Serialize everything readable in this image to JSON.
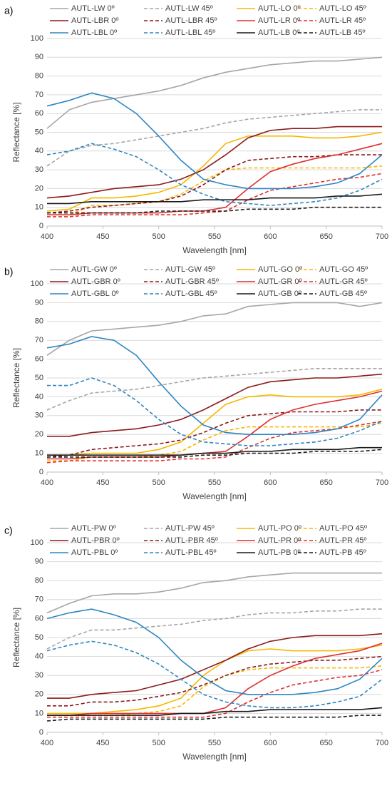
{
  "chart_data": [
    {
      "type": "line",
      "panel_label": "a)",
      "xlabel": "Wavelength [nm]",
      "ylabel": "Reflectance [%]",
      "x": [
        400,
        420,
        440,
        460,
        480,
        500,
        520,
        540,
        560,
        580,
        600,
        620,
        640,
        660,
        680,
        700
      ],
      "xlim": [
        400,
        700
      ],
      "xticks": [
        400,
        450,
        500,
        550,
        600,
        650,
        700
      ],
      "ylim": [
        0,
        100
      ],
      "yticks": [
        0,
        10,
        20,
        30,
        40,
        50,
        60,
        70,
        80,
        90,
        100
      ],
      "grid": true,
      "series": [
        {
          "name": "AUTL-LW 0º",
          "color": "#a6a6a6",
          "style": "solid",
          "values": [
            52,
            62,
            66,
            68,
            70,
            72,
            75,
            79,
            82,
            84,
            86,
            87,
            88,
            88,
            89,
            90
          ]
        },
        {
          "name": "AUTL-LW 45º",
          "color": "#a6a6a6",
          "style": "dashed",
          "values": [
            32,
            40,
            43,
            44,
            46,
            48,
            50,
            52,
            55,
            57,
            58,
            59,
            60,
            61,
            62,
            62
          ]
        },
        {
          "name": "AUTL-LO 0º",
          "color": "#f5b800",
          "style": "solid",
          "values": [
            8,
            9,
            15,
            15,
            16,
            18,
            22,
            32,
            44,
            48,
            48,
            48,
            47,
            47,
            48,
            50
          ]
        },
        {
          "name": "AUTL-LO 45º",
          "color": "#f5b800",
          "style": "dashed",
          "values": [
            6,
            6,
            11,
            11,
            12,
            13,
            17,
            24,
            30,
            31,
            31,
            31,
            31,
            31,
            31,
            32
          ]
        },
        {
          "name": "AUTL-LBR 0º",
          "color": "#8b1a1a",
          "style": "solid",
          "values": [
            15,
            16,
            18,
            20,
            21,
            22,
            25,
            30,
            38,
            47,
            51,
            52,
            52,
            53,
            53,
            53
          ]
        },
        {
          "name": "AUTL-LBR 45º",
          "color": "#8b1a1a",
          "style": "dashed",
          "values": [
            7,
            8,
            10,
            11,
            12,
            13,
            16,
            22,
            30,
            35,
            36,
            37,
            37,
            38,
            38,
            38
          ]
        },
        {
          "name": "AUTL-LR 0º",
          "color": "#e03030",
          "style": "solid",
          "values": [
            6,
            6,
            7,
            7,
            7,
            7,
            8,
            8,
            10,
            20,
            29,
            33,
            36,
            38,
            41,
            44
          ]
        },
        {
          "name": "AUTL-LR 45º",
          "color": "#e03030",
          "style": "dashed",
          "values": [
            5,
            5,
            6,
            6,
            6,
            6,
            6,
            7,
            8,
            14,
            19,
            21,
            23,
            25,
            26,
            28
          ]
        },
        {
          "name": "AUTL-LBL 0º",
          "color": "#2e86c1",
          "style": "solid",
          "values": [
            64,
            67,
            71,
            68,
            60,
            48,
            35,
            25,
            22,
            20,
            20,
            20,
            21,
            23,
            28,
            38
          ]
        },
        {
          "name": "AUTL-LBL 45º",
          "color": "#2e86c1",
          "style": "dashed",
          "values": [
            38,
            40,
            44,
            41,
            37,
            30,
            22,
            17,
            13,
            12,
            11,
            12,
            13,
            15,
            19,
            25
          ]
        },
        {
          "name": "AUTL-LB 0º",
          "color": "#1a1a1a",
          "style": "solid",
          "values": [
            12,
            12,
            13,
            13,
            13,
            13,
            13,
            14,
            14,
            14,
            15,
            15,
            15,
            16,
            16,
            17
          ]
        },
        {
          "name": "AUTL-LB 45º",
          "color": "#1a1a1a",
          "style": "dashed",
          "values": [
            7,
            7,
            7,
            7,
            7,
            8,
            8,
            8,
            8,
            9,
            9,
            9,
            10,
            10,
            10,
            10
          ]
        }
      ]
    },
    {
      "type": "line",
      "panel_label": "b)",
      "xlabel": "Wavelength [nm]",
      "ylabel": "Reflectance [%]",
      "x": [
        400,
        420,
        440,
        460,
        480,
        500,
        520,
        540,
        560,
        580,
        600,
        620,
        640,
        660,
        680,
        700
      ],
      "xlim": [
        400,
        700
      ],
      "xticks": [
        400,
        450,
        500,
        550,
        600,
        650,
        700
      ],
      "ylim": [
        0,
        100
      ],
      "yticks": [
        0,
        10,
        20,
        30,
        40,
        50,
        60,
        70,
        80,
        90,
        100
      ],
      "grid": true,
      "series": [
        {
          "name": "AUTL-GW 0º",
          "color": "#a6a6a6",
          "style": "solid",
          "values": [
            62,
            70,
            75,
            76,
            77,
            78,
            80,
            83,
            84,
            88,
            89,
            90,
            90,
            90,
            88,
            90
          ]
        },
        {
          "name": "AUTL-GW 45º",
          "color": "#a6a6a6",
          "style": "dashed",
          "values": [
            33,
            38,
            42,
            43,
            44,
            46,
            48,
            50,
            51,
            52,
            53,
            54,
            55,
            55,
            55,
            55
          ]
        },
        {
          "name": "AUTL-GO 0º",
          "color": "#f5b800",
          "style": "solid",
          "values": [
            9,
            9,
            10,
            10,
            10,
            12,
            16,
            26,
            36,
            40,
            41,
            40,
            40,
            40,
            41,
            44
          ]
        },
        {
          "name": "AUTL-GO 45º",
          "color": "#f5b800",
          "style": "dashed",
          "values": [
            6,
            6,
            8,
            8,
            8,
            9,
            11,
            17,
            22,
            24,
            24,
            24,
            24,
            24,
            24,
            26
          ]
        },
        {
          "name": "AUTL-GBR 0º",
          "color": "#8b1a1a",
          "style": "solid",
          "values": [
            19,
            19,
            21,
            22,
            23,
            25,
            28,
            33,
            39,
            45,
            48,
            49,
            50,
            50,
            51,
            52
          ]
        },
        {
          "name": "AUTL-GBR 45º",
          "color": "#8b1a1a",
          "style": "dashed",
          "values": [
            8,
            9,
            12,
            13,
            14,
            15,
            17,
            21,
            26,
            30,
            31,
            32,
            32,
            32,
            33,
            33
          ]
        },
        {
          "name": "AUTL-GR 0º",
          "color": "#e03030",
          "style": "solid",
          "values": [
            7,
            7,
            8,
            8,
            8,
            8,
            9,
            10,
            11,
            19,
            28,
            33,
            36,
            38,
            40,
            43
          ]
        },
        {
          "name": "AUTL-GR 45º",
          "color": "#e03030",
          "style": "dashed",
          "values": [
            5,
            6,
            6,
            6,
            6,
            6,
            7,
            7,
            8,
            13,
            18,
            21,
            22,
            23,
            25,
            27
          ]
        },
        {
          "name": "AUTL-GBL 0º",
          "color": "#2e86c1",
          "style": "solid",
          "values": [
            66,
            68,
            72,
            70,
            62,
            48,
            35,
            25,
            21,
            20,
            20,
            20,
            21,
            23,
            28,
            41
          ]
        },
        {
          "name": "AUTL-GBL 45º",
          "color": "#2e86c1",
          "style": "dashed",
          "values": [
            46,
            46,
            50,
            46,
            38,
            28,
            20,
            16,
            15,
            14,
            14,
            15,
            16,
            18,
            22,
            27
          ]
        },
        {
          "name": "AUTL-GB 0º",
          "color": "#1a1a1a",
          "style": "solid",
          "values": [
            9,
            9,
            9,
            9,
            9,
            9,
            9,
            10,
            10,
            11,
            11,
            12,
            12,
            12,
            13,
            13
          ]
        },
        {
          "name": "AUTL-GB 45º",
          "color": "#1a1a1a",
          "style": "dashed",
          "values": [
            8,
            8,
            8,
            8,
            8,
            8,
            8,
            9,
            9,
            10,
            10,
            10,
            11,
            11,
            11,
            12
          ]
        }
      ]
    },
    {
      "type": "line",
      "panel_label": "c)",
      "xlabel": "Wavelength [nm]",
      "ylabel": "Reflectance [%]",
      "x": [
        400,
        420,
        440,
        460,
        480,
        500,
        520,
        540,
        560,
        580,
        600,
        620,
        640,
        660,
        680,
        700
      ],
      "xlim": [
        400,
        700
      ],
      "xticks": [
        400,
        450,
        500,
        550,
        600,
        650,
        700
      ],
      "ylim": [
        0,
        100
      ],
      "yticks": [
        0,
        10,
        20,
        30,
        40,
        50,
        60,
        70,
        80,
        90,
        100
      ],
      "grid": true,
      "series": [
        {
          "name": "AUTL-PW 0º",
          "color": "#a6a6a6",
          "style": "solid",
          "values": [
            63,
            68,
            72,
            73,
            73,
            74,
            76,
            79,
            80,
            82,
            83,
            84,
            84,
            84,
            84,
            84
          ]
        },
        {
          "name": "AUTL-PW 45º",
          "color": "#a6a6a6",
          "style": "dashed",
          "values": [
            44,
            50,
            54,
            54,
            55,
            56,
            57,
            59,
            60,
            62,
            63,
            63,
            64,
            64,
            65,
            65
          ]
        },
        {
          "name": "AUTL-PO 0º",
          "color": "#f5b800",
          "style": "solid",
          "values": [
            10,
            10,
            10,
            11,
            12,
            14,
            18,
            30,
            38,
            43,
            44,
            43,
            43,
            43,
            44,
            46
          ]
        },
        {
          "name": "AUTL-PO 45º",
          "color": "#f5b800",
          "style": "dashed",
          "values": [
            9,
            9,
            9,
            9,
            10,
            11,
            14,
            24,
            30,
            33,
            34,
            34,
            34,
            34,
            34,
            35
          ]
        },
        {
          "name": "AUTL-PBR 0º",
          "color": "#8b1a1a",
          "style": "solid",
          "values": [
            18,
            18,
            20,
            21,
            22,
            25,
            28,
            33,
            38,
            44,
            48,
            50,
            51,
            51,
            51,
            52
          ]
        },
        {
          "name": "AUTL-PBR 45º",
          "color": "#8b1a1a",
          "style": "dashed",
          "values": [
            14,
            14,
            16,
            16,
            17,
            19,
            21,
            25,
            30,
            34,
            36,
            37,
            38,
            38,
            39,
            40
          ]
        },
        {
          "name": "AUTL-PR 0º",
          "color": "#e03030",
          "style": "solid",
          "values": [
            9,
            9,
            10,
            10,
            10,
            10,
            10,
            10,
            13,
            23,
            30,
            35,
            39,
            41,
            43,
            47
          ]
        },
        {
          "name": "AUTL-PR 45º",
          "color": "#e03030",
          "style": "dashed",
          "values": [
            8,
            8,
            8,
            8,
            8,
            8,
            8,
            8,
            10,
            16,
            21,
            25,
            27,
            29,
            30,
            33
          ]
        },
        {
          "name": "AUTL-PBL 0º",
          "color": "#2e86c1",
          "style": "solid",
          "values": [
            60,
            63,
            65,
            62,
            58,
            50,
            38,
            29,
            22,
            20,
            20,
            20,
            21,
            23,
            28,
            39
          ]
        },
        {
          "name": "AUTL-PBL 45º",
          "color": "#2e86c1",
          "style": "dashed",
          "values": [
            43,
            46,
            48,
            46,
            42,
            36,
            28,
            20,
            16,
            14,
            13,
            13,
            14,
            16,
            19,
            28
          ]
        },
        {
          "name": "AUTL-PB 0º",
          "color": "#1a1a1a",
          "style": "solid",
          "values": [
            9,
            9,
            9,
            9,
            9,
            9,
            10,
            10,
            11,
            11,
            12,
            12,
            12,
            12,
            12,
            13
          ]
        },
        {
          "name": "AUTL-PB 45º",
          "color": "#1a1a1a",
          "style": "dashed",
          "values": [
            6,
            7,
            7,
            7,
            7,
            7,
            7,
            7,
            8,
            8,
            8,
            8,
            8,
            8,
            9,
            9
          ]
        }
      ]
    }
  ]
}
